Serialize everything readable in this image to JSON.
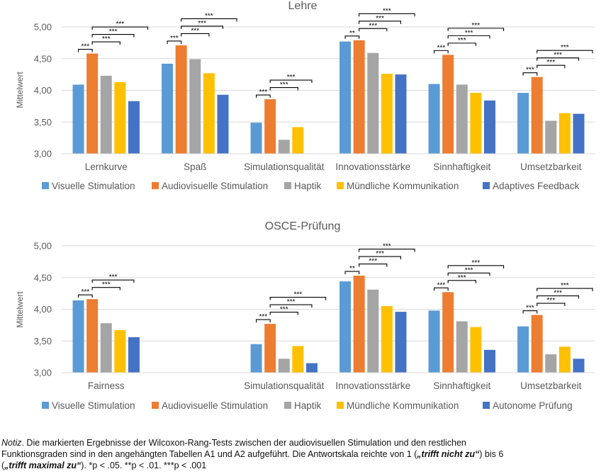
{
  "series_colors": [
    "#5B9BD5",
    "#ED7D31",
    "#A5A5A5",
    "#FFC000",
    "#4472C4"
  ],
  "chart_data": [
    {
      "type": "bar",
      "title": "Lehre",
      "ylabel": "Mittelwert",
      "ylim": [
        3.0,
        5.0
      ],
      "yticks": [
        "3,00",
        "3,50",
        "4,00",
        "4,50",
        "5,00"
      ],
      "grid": true,
      "legend": "bottom",
      "categories": [
        "Lernkurve",
        "Spaß",
        "Simulationsqualität",
        "Innovationsstärke",
        "Sinnhaftigkeit",
        "Umsetzbarkeit"
      ],
      "series": [
        {
          "name": "Visuelle Stimulation",
          "values": [
            4.09,
            4.42,
            3.49,
            4.77,
            4.1,
            3.96
          ]
        },
        {
          "name": "Audiovisuelle Stimulation",
          "values": [
            4.58,
            4.71,
            3.86,
            4.79,
            4.56,
            4.21
          ]
        },
        {
          "name": "Haptik",
          "values": [
            4.23,
            4.49,
            3.22,
            4.59,
            4.09,
            3.52
          ]
        },
        {
          "name": "Mündliche Kommunikation",
          "values": [
            4.13,
            4.27,
            3.42,
            4.26,
            3.96,
            3.64
          ]
        },
        {
          "name": "Adaptives Feedback",
          "values": [
            3.83,
            3.93,
            null,
            4.25,
            3.84,
            3.63
          ]
        }
      ],
      "significance": [
        {
          "category": 0,
          "labels": [
            "***",
            "***",
            "***",
            "***"
          ]
        },
        {
          "category": 1,
          "labels": [
            "***",
            "***",
            "***",
            "***"
          ]
        },
        {
          "category": 2,
          "labels": [
            "***",
            "***",
            "***"
          ]
        },
        {
          "category": 3,
          "labels": [
            "**",
            "***",
            "***",
            "***"
          ]
        },
        {
          "category": 4,
          "labels": [
            "***",
            "***",
            "***",
            "***"
          ]
        },
        {
          "category": 5,
          "labels": [
            "***",
            "***",
            "***",
            "***"
          ]
        }
      ]
    },
    {
      "type": "bar",
      "title": "OSCE-Prüfung",
      "ylabel": "Mittelwert",
      "ylim": [
        3.0,
        5.0
      ],
      "yticks": [
        "3,00",
        "3,50",
        "4,00",
        "4,50",
        "5,00"
      ],
      "grid": true,
      "legend": "bottom",
      "categories": [
        "Fairness",
        "",
        "Simulationsqualität",
        "Innovationsstärke",
        "Sinnhaftigkeit",
        "Umsetzbarkeit"
      ],
      "series": [
        {
          "name": "Visuelle Stimulation",
          "values": [
            4.14,
            null,
            3.45,
            4.44,
            3.98,
            3.73
          ]
        },
        {
          "name": "Audiovisuelle Stimulation",
          "values": [
            4.16,
            null,
            3.77,
            4.53,
            4.27,
            3.91
          ]
        },
        {
          "name": "Haptik",
          "values": [
            3.78,
            null,
            3.22,
            4.31,
            3.81,
            3.29
          ]
        },
        {
          "name": "Mündliche Kommunikation",
          "values": [
            3.67,
            null,
            3.42,
            4.05,
            3.72,
            3.41
          ]
        },
        {
          "name": "Autonome Prüfung",
          "values": [
            3.56,
            null,
            3.15,
            3.96,
            3.36,
            3.22
          ]
        }
      ],
      "significance": [
        {
          "category": 0,
          "labels": [
            "***",
            "***",
            "***"
          ]
        },
        {
          "category": 2,
          "labels": [
            "***",
            "***",
            "***",
            "***"
          ]
        },
        {
          "category": 3,
          "labels": [
            "**",
            "***",
            "***",
            "***"
          ]
        },
        {
          "category": 4,
          "labels": [
            "***",
            "***",
            "***",
            "***"
          ]
        },
        {
          "category": 5,
          "labels": [
            "***",
            "***",
            "***",
            "***"
          ]
        }
      ]
    }
  ],
  "note": {
    "prefix": "Notiz",
    "line1": ". Die markierten Ergebnisse der Wilcoxon-Rang-Tests zwischen der audiovisuellen Stimulation und den restlichen",
    "line2": " Funktionsgraden sind in den angehängten Tabellen A1 und A2 aufgeführt. Die Antwortskala reichte von 1 (",
    "q1": "„trifft nicht zu“",
    "line2b": ") bis 6",
    "line3a": "(",
    "q2": "„trifft maximal zu“",
    "line3b": "). *p < .05. **p < .01. ***p < .001"
  }
}
